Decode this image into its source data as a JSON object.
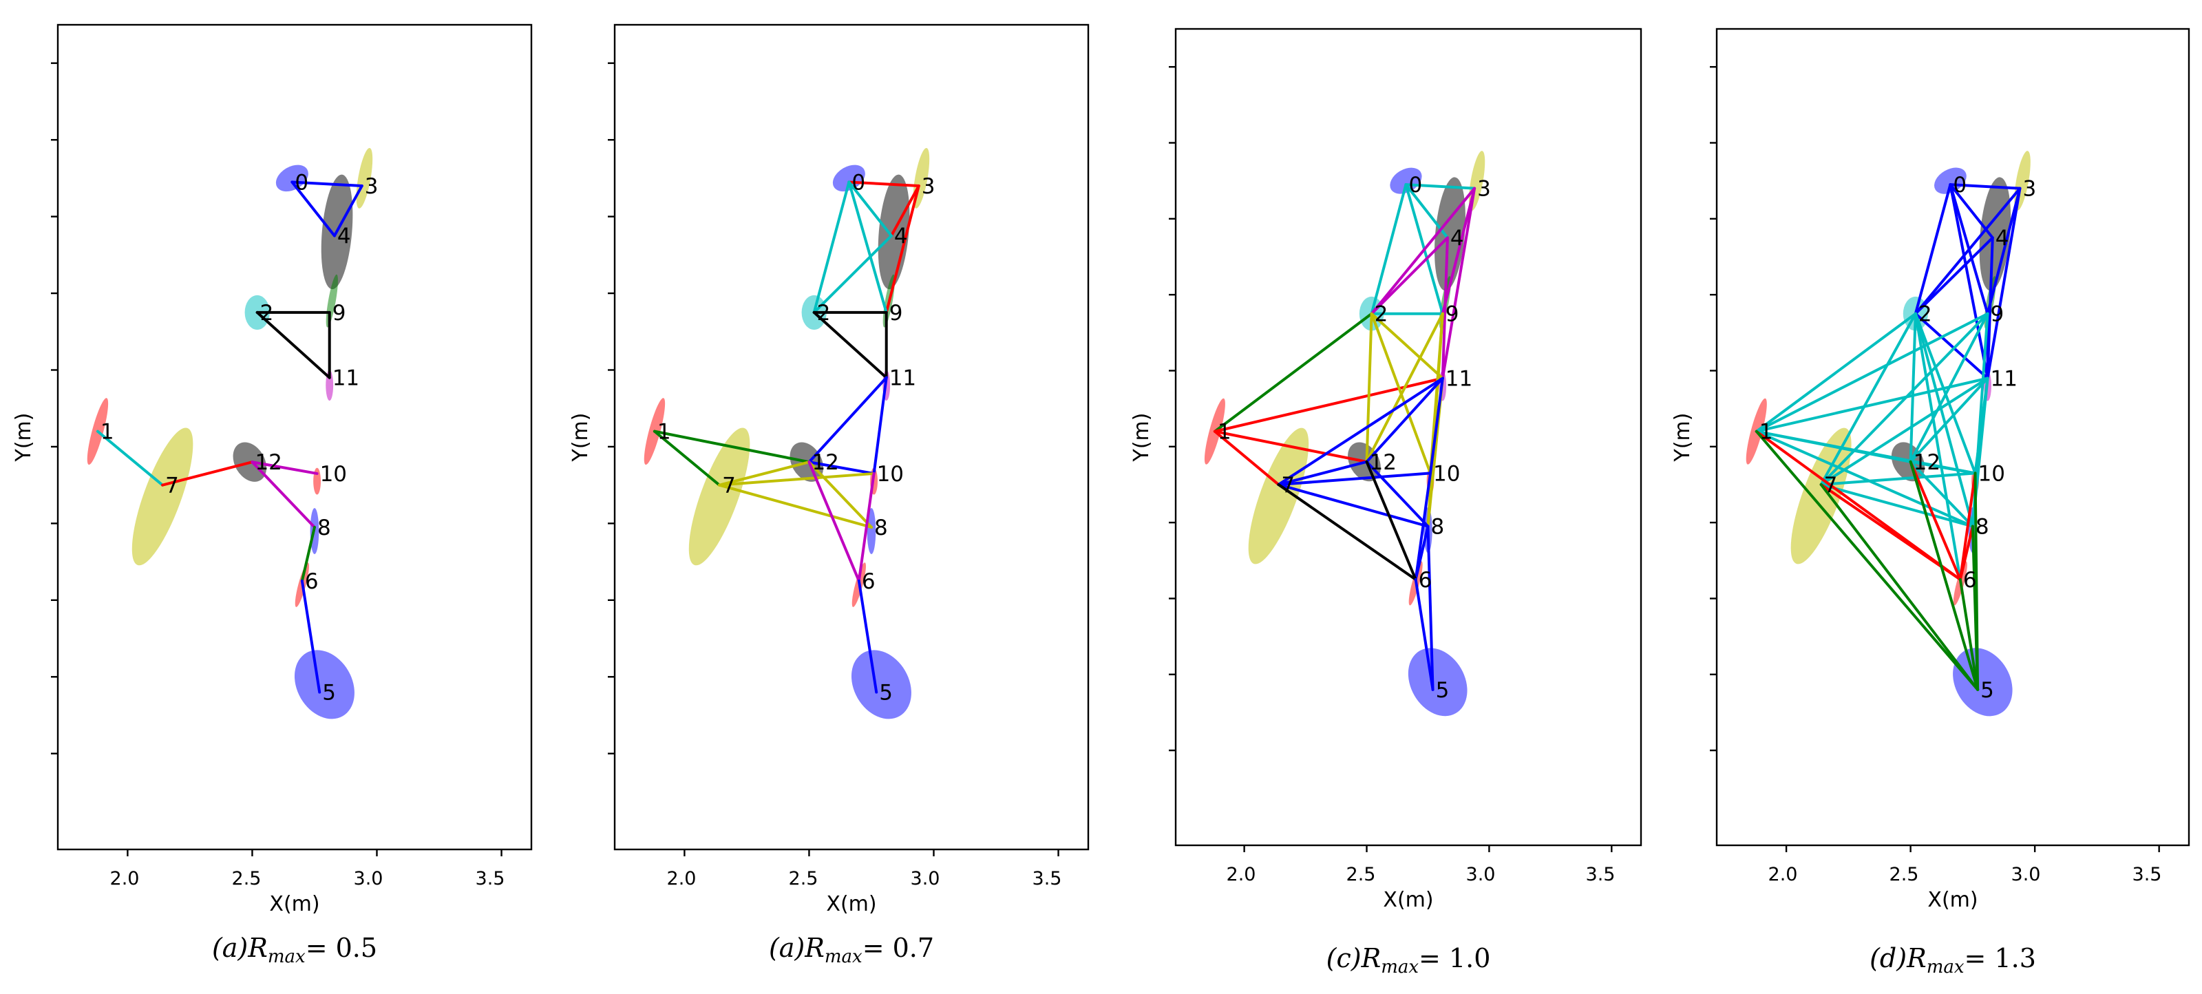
{
  "chart_data": [
    {
      "type": "scatter",
      "panel_label": "(a)",
      "r_max": "0.5",
      "xlabel": "X(m)",
      "ylabel": "Y(m)",
      "xlim": [
        1.72,
        3.62
      ],
      "ylim": [
        -0.65,
        1.5
      ],
      "xticks": [
        "2.0",
        "2.5",
        "3.0",
        "3.5"
      ],
      "edges": [
        [
          0,
          4,
          "#0000ff"
        ],
        [
          0,
          3,
          "#0000ff"
        ],
        [
          3,
          4,
          "#0000ff"
        ],
        [
          2,
          9,
          "#000000"
        ],
        [
          9,
          11,
          "#000000"
        ],
        [
          2,
          11,
          "#000000"
        ],
        [
          1,
          7,
          "#00bfbf"
        ],
        [
          7,
          12,
          "#ff0000"
        ],
        [
          12,
          10,
          "#bf00bf"
        ],
        [
          12,
          8,
          "#bf00bf"
        ],
        [
          8,
          6,
          "#008000"
        ],
        [
          6,
          5,
          "#0000ff"
        ]
      ]
    },
    {
      "type": "scatter",
      "panel_label": "(a)",
      "r_max": "0.7",
      "xlabel": "X(m)",
      "ylabel": "Y(m)",
      "xlim": [
        1.72,
        3.62
      ],
      "ylim": [
        -0.65,
        1.5
      ],
      "xticks": [
        "2.0",
        "2.5",
        "3.0",
        "3.5"
      ],
      "edges": [
        [
          0,
          3,
          "#ff0000"
        ],
        [
          3,
          4,
          "#ff0000"
        ],
        [
          3,
          9,
          "#ff0000"
        ],
        [
          0,
          2,
          "#00bfbf"
        ],
        [
          0,
          4,
          "#00bfbf"
        ],
        [
          2,
          4,
          "#00bfbf"
        ],
        [
          0,
          9,
          "#00bfbf"
        ],
        [
          2,
          9,
          "#000000"
        ],
        [
          2,
          11,
          "#000000"
        ],
        [
          9,
          11,
          "#000000"
        ],
        [
          11,
          12,
          "#0000ff"
        ],
        [
          11,
          10,
          "#0000ff"
        ],
        [
          12,
          10,
          "#0000ff"
        ],
        [
          1,
          7,
          "#008000"
        ],
        [
          1,
          12,
          "#008000"
        ],
        [
          7,
          12,
          "#bfbf00"
        ],
        [
          7,
          8,
          "#bfbf00"
        ],
        [
          12,
          8,
          "#bfbf00"
        ],
        [
          7,
          10,
          "#bfbf00"
        ],
        [
          12,
          6,
          "#bf00bf"
        ],
        [
          10,
          6,
          "#bf00bf"
        ],
        [
          6,
          5,
          "#0000ff"
        ]
      ]
    },
    {
      "type": "scatter",
      "panel_label": "(c)",
      "r_max": "1.0",
      "xlabel": "X(m)",
      "ylabel": "Y(m)",
      "xlim": [
        1.72,
        3.62
      ],
      "ylim": [
        -0.65,
        1.5
      ],
      "xticks": [
        "2.0",
        "2.5",
        "3.0",
        "3.5"
      ],
      "edges": [
        [
          0,
          2,
          "#00bfbf"
        ],
        [
          0,
          3,
          "#00bfbf"
        ],
        [
          0,
          4,
          "#00bfbf"
        ],
        [
          0,
          9,
          "#00bfbf"
        ],
        [
          2,
          9,
          "#00bfbf"
        ],
        [
          2,
          3,
          "#bf00bf"
        ],
        [
          2,
          4,
          "#bf00bf"
        ],
        [
          3,
          11,
          "#bf00bf"
        ],
        [
          4,
          11,
          "#bf00bf"
        ],
        [
          3,
          9,
          "#bf00bf"
        ],
        [
          1,
          2,
          "#008000"
        ],
        [
          1,
          11,
          "#ff0000"
        ],
        [
          1,
          12,
          "#ff0000"
        ],
        [
          1,
          7,
          "#ff0000"
        ],
        [
          2,
          12,
          "#bfbf00"
        ],
        [
          2,
          10,
          "#bfbf00"
        ],
        [
          2,
          11,
          "#bfbf00"
        ],
        [
          9,
          12,
          "#bfbf00"
        ],
        [
          9,
          10,
          "#bfbf00"
        ],
        [
          9,
          8,
          "#bfbf00"
        ],
        [
          11,
          8,
          "#bfbf00"
        ],
        [
          7,
          11,
          "#0000ff"
        ],
        [
          7,
          12,
          "#0000ff"
        ],
        [
          7,
          10,
          "#0000ff"
        ],
        [
          7,
          8,
          "#0000ff"
        ],
        [
          12,
          11,
          "#0000ff"
        ],
        [
          12,
          8,
          "#0000ff"
        ],
        [
          10,
          6,
          "#0000ff"
        ],
        [
          8,
          6,
          "#0000ff"
        ],
        [
          11,
          10,
          "#0000ff"
        ],
        [
          7,
          6,
          "#000000"
        ],
        [
          12,
          6,
          "#000000"
        ],
        [
          6,
          5,
          "#0000ff"
        ],
        [
          8,
          5,
          "#0000ff"
        ]
      ]
    },
    {
      "type": "scatter",
      "panel_label": "(d)",
      "r_max": "1.3",
      "xlabel": "X(m)",
      "ylabel": "Y(m)",
      "xlim": [
        1.72,
        3.62
      ],
      "ylim": [
        -0.65,
        1.5
      ],
      "xticks": [
        "2.0",
        "2.5",
        "3.0",
        "3.5"
      ],
      "edges": [
        [
          0,
          3,
          "#0000ff"
        ],
        [
          0,
          4,
          "#0000ff"
        ],
        [
          0,
          2,
          "#0000ff"
        ],
        [
          0,
          9,
          "#0000ff"
        ],
        [
          0,
          11,
          "#0000ff"
        ],
        [
          3,
          2,
          "#0000ff"
        ],
        [
          3,
          9,
          "#0000ff"
        ],
        [
          3,
          11,
          "#0000ff"
        ],
        [
          4,
          2,
          "#0000ff"
        ],
        [
          4,
          11,
          "#0000ff"
        ],
        [
          2,
          11,
          "#0000ff"
        ],
        [
          9,
          11,
          "#0000ff"
        ],
        [
          1,
          2,
          "#00bfbf"
        ],
        [
          1,
          9,
          "#00bfbf"
        ],
        [
          1,
          11,
          "#00bfbf"
        ],
        [
          1,
          12,
          "#00bfbf"
        ],
        [
          1,
          10,
          "#00bfbf"
        ],
        [
          1,
          8,
          "#00bfbf"
        ],
        [
          2,
          7,
          "#00bfbf"
        ],
        [
          2,
          12,
          "#00bfbf"
        ],
        [
          2,
          10,
          "#00bfbf"
        ],
        [
          2,
          8,
          "#00bfbf"
        ],
        [
          2,
          6,
          "#00bfbf"
        ],
        [
          9,
          7,
          "#00bfbf"
        ],
        [
          9,
          12,
          "#00bfbf"
        ],
        [
          9,
          8,
          "#00bfbf"
        ],
        [
          11,
          7,
          "#00bfbf"
        ],
        [
          11,
          12,
          "#00bfbf"
        ],
        [
          11,
          8,
          "#00bfbf"
        ],
        [
          11,
          10,
          "#00bfbf"
        ],
        [
          7,
          10,
          "#00bfbf"
        ],
        [
          7,
          8,
          "#00bfbf"
        ],
        [
          12,
          10,
          "#00bfbf"
        ],
        [
          12,
          8,
          "#00bfbf"
        ],
        [
          1,
          6,
          "#ff0000"
        ],
        [
          7,
          6,
          "#ff0000"
        ],
        [
          12,
          6,
          "#ff0000"
        ],
        [
          10,
          6,
          "#ff0000"
        ],
        [
          8,
          6,
          "#ff0000"
        ],
        [
          1,
          5,
          "#008000"
        ],
        [
          7,
          5,
          "#008000"
        ],
        [
          12,
          5,
          "#008000"
        ],
        [
          6,
          5,
          "#008000"
        ],
        [
          8,
          5,
          "#008000"
        ],
        [
          10,
          5,
          "#008000"
        ]
      ]
    }
  ],
  "nodes": [
    {
      "id": "0",
      "x": 2.66,
      "y": 1.09
    },
    {
      "id": "1",
      "x": 1.88,
      "y": 0.44
    },
    {
      "id": "2",
      "x": 2.52,
      "y": 0.75
    },
    {
      "id": "3",
      "x": 2.94,
      "y": 1.08
    },
    {
      "id": "4",
      "x": 2.83,
      "y": 0.95
    },
    {
      "id": "5",
      "x": 2.77,
      "y": -0.24
    },
    {
      "id": "6",
      "x": 2.7,
      "y": 0.05
    },
    {
      "id": "7",
      "x": 2.14,
      "y": 0.3
    },
    {
      "id": "8",
      "x": 2.75,
      "y": 0.19
    },
    {
      "id": "9",
      "x": 2.81,
      "y": 0.75
    },
    {
      "id": "10",
      "x": 2.76,
      "y": 0.33
    },
    {
      "id": "11",
      "x": 2.81,
      "y": 0.58
    },
    {
      "id": "12",
      "x": 2.5,
      "y": 0.36
    }
  ],
  "ellipses": [
    {
      "id": "0",
      "x": 2.66,
      "y": 1.1,
      "w": 0.14,
      "h": 0.06,
      "rot": -30,
      "color": "#0000ff"
    },
    {
      "id": "1",
      "x": 1.88,
      "y": 0.44,
      "w": 0.045,
      "h": 0.18,
      "rot": 15,
      "color": "#ff0000"
    },
    {
      "id": "2",
      "x": 2.52,
      "y": 0.75,
      "w": 0.1,
      "h": 0.09,
      "rot": 0,
      "color": "#00bfbf"
    },
    {
      "id": "3",
      "x": 2.95,
      "y": 1.1,
      "w": 0.05,
      "h": 0.16,
      "rot": 10,
      "color": "#bfbf00"
    },
    {
      "id": "4",
      "x": 2.84,
      "y": 0.96,
      "w": 0.12,
      "h": 0.3,
      "rot": 5,
      "color": "#000000"
    },
    {
      "id": "5",
      "x": 2.79,
      "y": -0.22,
      "w": 0.22,
      "h": 0.19,
      "rot": -30,
      "color": "#0000ff"
    },
    {
      "id": "6",
      "x": 2.7,
      "y": 0.04,
      "w": 0.03,
      "h": 0.12,
      "rot": 15,
      "color": "#ff0000"
    },
    {
      "id": "7",
      "x": 2.14,
      "y": 0.27,
      "w": 0.15,
      "h": 0.38,
      "rot": 20,
      "color": "#bfbf00"
    },
    {
      "id": "8",
      "x": 2.75,
      "y": 0.18,
      "w": 0.035,
      "h": 0.12,
      "rot": 0,
      "color": "#0000ff"
    },
    {
      "id": "9",
      "x": 2.82,
      "y": 0.78,
      "w": 0.03,
      "h": 0.14,
      "rot": 10,
      "color": "#008000"
    },
    {
      "id": "10",
      "x": 2.76,
      "y": 0.31,
      "w": 0.03,
      "h": 0.07,
      "rot": 0,
      "color": "#ff0000"
    },
    {
      "id": "11",
      "x": 2.81,
      "y": 0.56,
      "w": 0.03,
      "h": 0.08,
      "rot": 0,
      "color": "#bf00bf"
    },
    {
      "id": "12",
      "x": 2.49,
      "y": 0.36,
      "w": 0.12,
      "h": 0.11,
      "rot": -30,
      "color": "#000000"
    }
  ]
}
